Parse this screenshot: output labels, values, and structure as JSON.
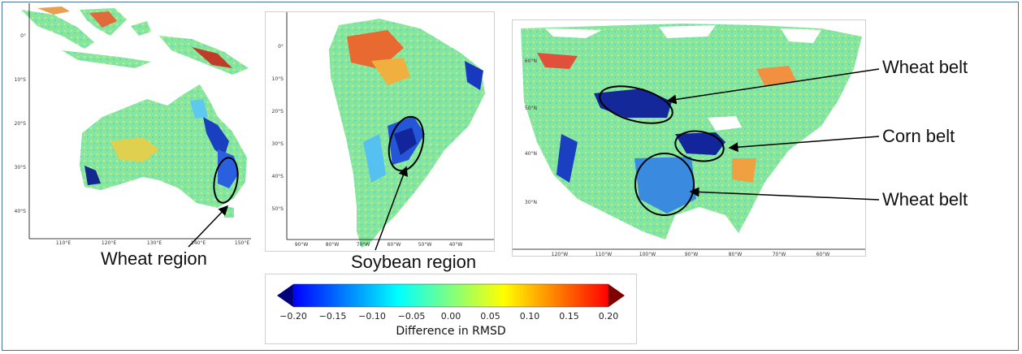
{
  "panels": {
    "australia": {
      "lat_ticks": [
        "0°",
        "10°S",
        "20°S",
        "30°S",
        "40°S"
      ],
      "lon_ticks": [
        "110°E",
        "120°E",
        "130°E",
        "140°E",
        "150°E"
      ]
    },
    "south_america": {
      "lat_ticks": [
        "0°",
        "10°S",
        "20°S",
        "30°S",
        "40°S",
        "50°S"
      ],
      "lon_ticks": [
        "90°W",
        "80°W",
        "70°W",
        "60°W",
        "50°W",
        "40°W"
      ]
    },
    "north_america": {
      "lat_ticks": [
        "60°N",
        "50°N",
        "40°N",
        "30°N"
      ],
      "lon_ticks": [
        "120°W",
        "110°W",
        "100°W",
        "90°W",
        "80°W",
        "70°W",
        "60°W"
      ]
    }
  },
  "annotations": {
    "australia_region": "Wheat region",
    "south_america_region": "Soybean region",
    "north_america_wheat_belt_north": "Wheat belt",
    "north_america_corn_belt": "Corn belt",
    "north_america_wheat_belt_south": "Wheat belt"
  },
  "colorbar": {
    "title": "Difference in RMSD",
    "min": -0.2,
    "max": 0.2,
    "ticks": [
      "−0.20",
      "−0.15",
      "−0.10",
      "−0.05",
      "0.00",
      "0.05",
      "0.10",
      "0.15",
      "0.20"
    ],
    "colormap": "jet",
    "extend": "both",
    "colors": [
      "#00007f",
      "#0000ff",
      "#0080ff",
      "#00ffff",
      "#80ff80",
      "#ffff00",
      "#ff8000",
      "#ff0000",
      "#7f0000"
    ]
  },
  "colors": {
    "frame": "#4a6fa5",
    "land_base": "#7ee8a0",
    "ocean": "#ffffff"
  }
}
